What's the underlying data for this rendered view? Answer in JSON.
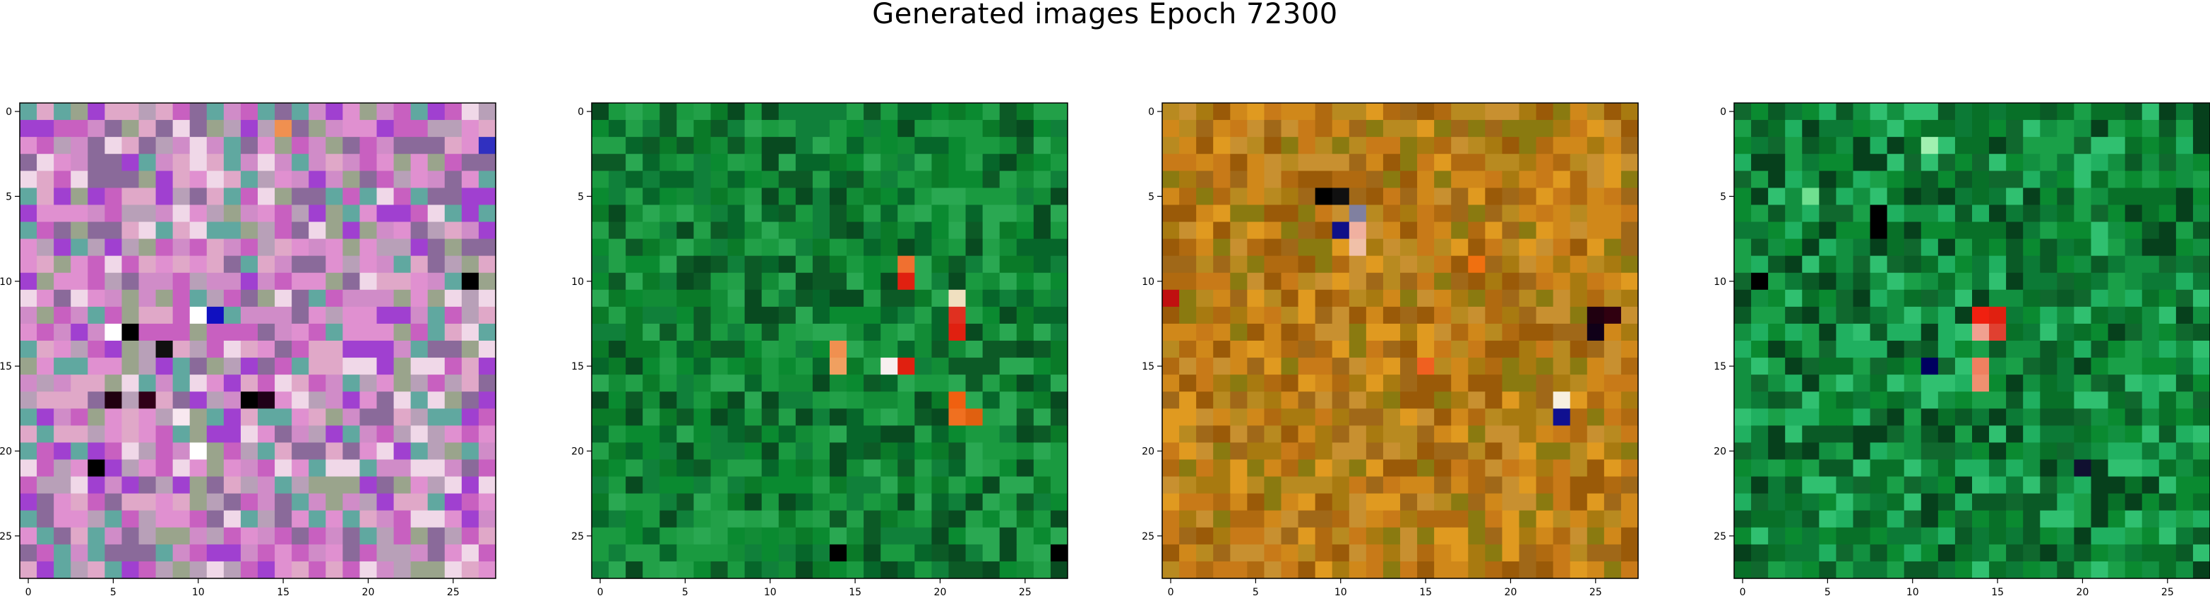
{
  "title": "Generated images Epoch 72300",
  "chart_data": {
    "type": "heatmap",
    "title": "Generated images Epoch 72300",
    "panel_count": 4,
    "grid_size": 28,
    "xlim": [
      -0.5,
      27.5
    ],
    "ylim": [
      27.5,
      -0.5
    ],
    "xticks": [
      0,
      5,
      10,
      15,
      20,
      25
    ],
    "yticks": [
      0,
      5,
      10,
      15,
      20,
      25
    ],
    "grid": false,
    "panels": [
      {
        "name": "",
        "palette": [
          "#d08cc8",
          "#b8a0b8",
          "#e0a8c8",
          "#9aa48c",
          "#c860c0",
          "#f0d8e8",
          "#8a6a9a",
          "#60a8a0",
          "#a040d0",
          "#e090d0"
        ],
        "features": [
          {
            "row": 12,
            "col": 10,
            "color": "#ffffff"
          },
          {
            "row": 12,
            "col": 11,
            "color": "#1010c0"
          },
          {
            "row": 13,
            "col": 6,
            "color": "#000000"
          },
          {
            "row": 13,
            "col": 5,
            "color": "#ffffff"
          },
          {
            "row": 14,
            "col": 8,
            "color": "#101010"
          },
          {
            "row": 17,
            "col": 5,
            "color": "#200010"
          },
          {
            "row": 17,
            "col": 7,
            "color": "#300018"
          },
          {
            "row": 17,
            "col": 13,
            "color": "#000000"
          },
          {
            "row": 17,
            "col": 14,
            "color": "#200018"
          },
          {
            "row": 18,
            "col": 9,
            "color": "#f8e8f0"
          },
          {
            "row": 20,
            "col": 10,
            "color": "#ffffff"
          },
          {
            "row": 21,
            "col": 4,
            "color": "#000000"
          },
          {
            "row": 1,
            "col": 15,
            "color": "#f09050"
          },
          {
            "row": 2,
            "col": 27,
            "color": "#3030c0"
          },
          {
            "row": 10,
            "col": 26,
            "color": "#000000"
          }
        ]
      },
      {
        "name": "",
        "palette": [
          "#0a8a30",
          "#0a7a28",
          "#128c36",
          "#06662a",
          "#1a9a40",
          "#0c5a26",
          "#22a048",
          "#084a20",
          "#10803a",
          "#2aa852"
        ],
        "features": [
          {
            "row": 9,
            "col": 18,
            "color": "#f07030"
          },
          {
            "row": 10,
            "col": 18,
            "color": "#e02010"
          },
          {
            "row": 11,
            "col": 21,
            "color": "#f0e0c0"
          },
          {
            "row": 12,
            "col": 21,
            "color": "#e03020"
          },
          {
            "row": 13,
            "col": 21,
            "color": "#e02010"
          },
          {
            "row": 14,
            "col": 14,
            "color": "#f09050"
          },
          {
            "row": 15,
            "col": 14,
            "color": "#f0a060"
          },
          {
            "row": 15,
            "col": 17,
            "color": "#f8f0f0"
          },
          {
            "row": 15,
            "col": 18,
            "color": "#e02010"
          },
          {
            "row": 17,
            "col": 21,
            "color": "#f06010"
          },
          {
            "row": 18,
            "col": 21,
            "color": "#f07020"
          },
          {
            "row": 18,
            "col": 22,
            "color": "#e06010"
          },
          {
            "row": 26,
            "col": 14,
            "color": "#000000"
          },
          {
            "row": 26,
            "col": 27,
            "color": "#000000"
          }
        ]
      },
      {
        "name": "",
        "palette": [
          "#c87a18",
          "#a87a10",
          "#d0881a",
          "#b06a10",
          "#8a7a10",
          "#e09a20",
          "#9a5a08",
          "#c89030",
          "#b88a20",
          "#a06818"
        ],
        "features": [
          {
            "row": 5,
            "col": 9,
            "color": "#000000"
          },
          {
            "row": 5,
            "col": 10,
            "color": "#101010"
          },
          {
            "row": 6,
            "col": 11,
            "color": "#8080a0"
          },
          {
            "row": 7,
            "col": 10,
            "color": "#101088"
          },
          {
            "row": 7,
            "col": 11,
            "color": "#f0b0a0"
          },
          {
            "row": 8,
            "col": 11,
            "color": "#f0c0a8"
          },
          {
            "row": 12,
            "col": 25,
            "color": "#200010"
          },
          {
            "row": 12,
            "col": 26,
            "color": "#300010"
          },
          {
            "row": 13,
            "col": 25,
            "color": "#100018"
          },
          {
            "row": 17,
            "col": 23,
            "color": "#f8f0e0"
          },
          {
            "row": 18,
            "col": 23,
            "color": "#101090"
          },
          {
            "row": 11,
            "col": 0,
            "color": "#c01010"
          },
          {
            "row": 9,
            "col": 18,
            "color": "#f07010"
          },
          {
            "row": 15,
            "col": 15,
            "color": "#f06020"
          }
        ]
      },
      {
        "name": "",
        "palette": [
          "#0a8a30",
          "#087028",
          "#129040",
          "#0a5a26",
          "#1aa048",
          "#06401c",
          "#20b060",
          "#0c7a36",
          "#30c070",
          "#10682e"
        ],
        "features": [
          {
            "row": 12,
            "col": 14,
            "color": "#f02010"
          },
          {
            "row": 12,
            "col": 15,
            "color": "#e02010"
          },
          {
            "row": 13,
            "col": 14,
            "color": "#f0a090"
          },
          {
            "row": 13,
            "col": 15,
            "color": "#e04030"
          },
          {
            "row": 15,
            "col": 14,
            "color": "#f08060"
          },
          {
            "row": 16,
            "col": 14,
            "color": "#f09070"
          },
          {
            "row": 15,
            "col": 11,
            "color": "#000060"
          },
          {
            "row": 7,
            "col": 8,
            "color": "#000000"
          },
          {
            "row": 6,
            "col": 8,
            "color": "#000000"
          },
          {
            "row": 21,
            "col": 20,
            "color": "#101030"
          },
          {
            "row": 10,
            "col": 1,
            "color": "#000000"
          },
          {
            "row": 2,
            "col": 11,
            "color": "#a0f0b0"
          },
          {
            "row": 5,
            "col": 4,
            "color": "#70e090"
          }
        ]
      }
    ]
  }
}
